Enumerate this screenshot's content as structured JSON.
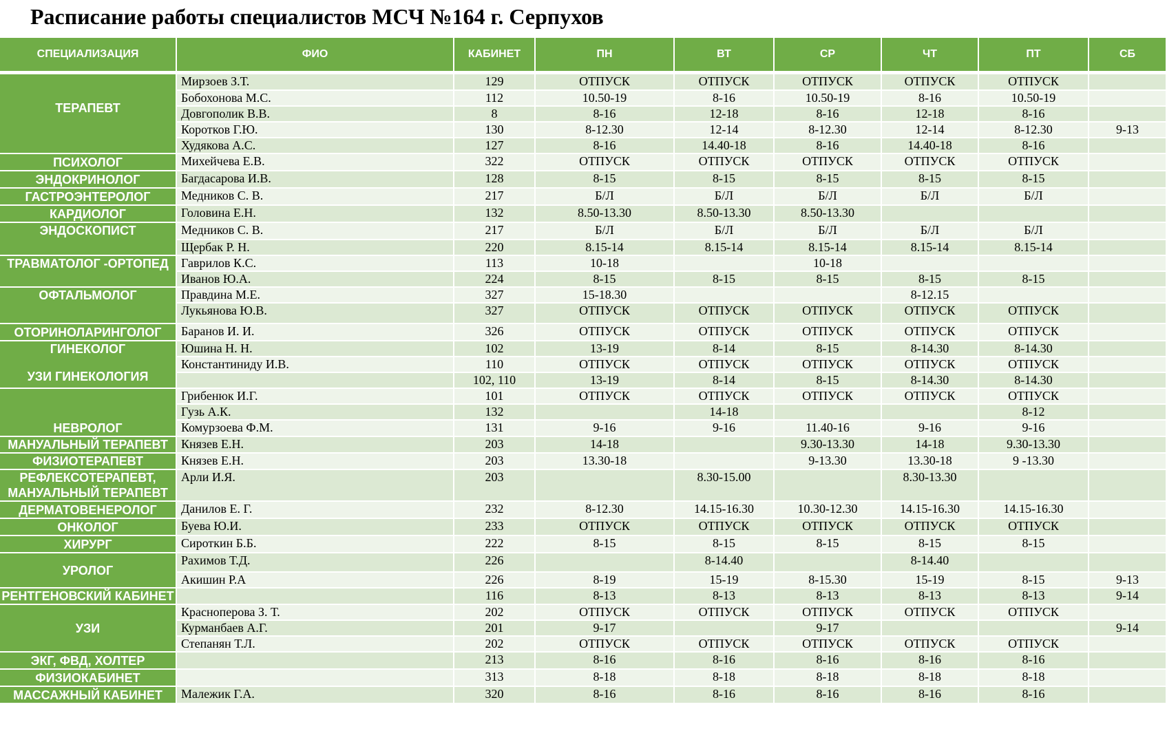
{
  "title": "Расписание работы специалистов МСЧ №164 г. Серпухов",
  "headers": [
    "СПЕЦИАЛИЗАЦИЯ",
    "ФИО",
    "КАБИНЕТ",
    "ПН",
    "ВТ",
    "СР",
    "ЧТ",
    "ПТ",
    "СБ"
  ],
  "specs": {
    "terapevt": "ТЕРАПЕВТ",
    "psiholog": "ПСИХОЛОГ",
    "endokrinolog": "ЭНДОКРИНОЛОГ",
    "gastro": "ГАСТРОЭНТЕРОЛОГ",
    "kardiolog": "КАРДИОЛОГ",
    "endoskopist": "ЭНДОСКОПИСТ",
    "travmatolog": "ТРАВМАТОЛОГ -ОРТОПЕД",
    "oftalmolog": "ОФТАЛЬМОЛОГ",
    "lor": "ОТОРИНОЛАРИНГОЛОГ",
    "ginekolog": "ГИНЕКОЛОГ",
    "uzi_gin": "УЗИ ГИНЕКОЛОГИЯ",
    "nevrolog": "НЕВРОЛОГ",
    "manual": "МАНУАЛЬНЫЙ ТЕРАПЕВТ",
    "fizio": "ФИЗИОТЕРАПЕВТ",
    "refleks_1": "РЕФЛЕКСОТЕРАПЕВТ,",
    "refleks_2": "МАНУАЛЬНЫЙ ТЕРАПЕВТ",
    "dermato": "ДЕРМАТОВЕНЕРОЛОГ",
    "onkolog": "ОНКОЛОГ",
    "hirurg": "ХИРУРГ",
    "urolog": "УРОЛОГ",
    "rentgen": "РЕНТГЕНОВСКИЙ КАБИНЕТ",
    "uzi": "УЗИ",
    "ekg": "ЭКГ, ФВД, ХОЛТЕР",
    "fiziokab": "ФИЗИОКАБИНЕТ",
    "massazh": "МАССАЖНЫЙ КАБИНЕТ"
  },
  "rows": [
    {
      "fio": "Мирзоев  З.Т.",
      "cab": "129",
      "mon": "ОТПУСК",
      "tue": "ОТПУСК",
      "wed": "ОТПУСК",
      "thu": "ОТПУСК",
      "fri": "ОТПУСК",
      "sat": ""
    },
    {
      "fio": "Бобохонова М.С.",
      "cab": "112",
      "mon": "10.50-19",
      "tue": "8-16",
      "wed": "10.50-19",
      "thu": "8-16",
      "fri": "10.50-19",
      "sat": ""
    },
    {
      "fio": "Довгополик В.В.",
      "cab": "8",
      "mon": "8-16",
      "tue": "12-18",
      "wed": "8-16",
      "thu": "12-18",
      "fri": "8-16",
      "sat": ""
    },
    {
      "fio": "Коротков Г.Ю.",
      "cab": "130",
      "mon": "8-12.30",
      "tue": "12-14",
      "wed": "8-12.30",
      "thu": "12-14",
      "fri": "8-12.30",
      "sat": "9-13"
    },
    {
      "fio": "Худякова А.С.",
      "cab": "127",
      "mon": "8-16",
      "tue": "14.40-18",
      "wed": "8-16",
      "thu": "14.40-18",
      "fri": "8-16",
      "sat": ""
    },
    {
      "fio": "Михейчева Е.В.",
      "cab": "322",
      "mon": "ОТПУСК",
      "tue": "ОТПУСК",
      "wed": "ОТПУСК",
      "thu": "ОТПУСК",
      "fri": "ОТПУСК",
      "sat": ""
    },
    {
      "fio": "Багдасарова И.В.",
      "cab": "128",
      "mon": "8-15",
      "tue": "8-15",
      "wed": "8-15",
      "thu": "8-15",
      "fri": "8-15",
      "sat": ""
    },
    {
      "fio": "Медников С. В.",
      "cab": "217",
      "mon": "Б/Л",
      "tue": "Б/Л",
      "wed": "Б/Л",
      "thu": "Б/Л",
      "fri": "Б/Л",
      "sat": ""
    },
    {
      "fio": "Головина Е.Н.",
      "cab": "132",
      "mon": "8.50-13.30",
      "tue": "8.50-13.30",
      "wed": "8.50-13.30",
      "thu": "",
      "fri": "",
      "sat": ""
    },
    {
      "fio": "Медников С. В.",
      "cab": "217",
      "mon": "Б/Л",
      "tue": "Б/Л",
      "wed": "Б/Л",
      "thu": "Б/Л",
      "fri": "Б/Л",
      "sat": ""
    },
    {
      "fio": "Щербак Р. Н.",
      "cab": "220",
      "mon": "8.15-14",
      "tue": "8.15-14",
      "wed": "8.15-14",
      "thu": "8.15-14",
      "fri": "8.15-14",
      "sat": ""
    },
    {
      "fio": "Гаврилов К.С.",
      "cab": "113",
      "mon": "10-18",
      "tue": "",
      "wed": "10-18",
      "thu": "",
      "fri": "",
      "sat": ""
    },
    {
      "fio": "Иванов Ю.А.",
      "cab": "224",
      "mon": "8-15",
      "tue": "8-15",
      "wed": "8-15",
      "thu": "8-15",
      "fri": "8-15",
      "sat": ""
    },
    {
      "fio": "Правдина М.Е.",
      "cab": "327",
      "mon": "15-18.30",
      "tue": "",
      "wed": "",
      "thu": "8-12.15",
      "fri": "",
      "sat": ""
    },
    {
      "fio": "Лукьянова Ю.В.",
      "cab": "327",
      "mon": "ОТПУСК",
      "tue": "ОТПУСК",
      "wed": "ОТПУСК",
      "thu": "ОТПУСК",
      "fri": "ОТПУСК",
      "sat": ""
    },
    {
      "fio": "Баранов И. И.",
      "cab": "326",
      "mon": "ОТПУСК",
      "tue": "ОТПУСК",
      "wed": "ОТПУСК",
      "thu": "ОТПУСК",
      "fri": "ОТПУСК",
      "sat": ""
    },
    {
      "fio": "Юшина Н. Н.",
      "cab": "102",
      "mon": "13-19",
      "tue": "8-14",
      "wed": "8-15",
      "thu": "8-14.30",
      "fri": "8-14.30",
      "sat": ""
    },
    {
      "fio": "Константиниду И.В.",
      "cab": "110",
      "mon": "ОТПУСК",
      "tue": "ОТПУСК",
      "wed": "ОТПУСК",
      "thu": "ОТПУСК",
      "fri": "ОТПУСК",
      "sat": ""
    },
    {
      "fio": "",
      "cab": "102, 110",
      "mon": "13-19",
      "tue": "8-14",
      "wed": "8-15",
      "thu": "8-14.30",
      "fri": "8-14.30",
      "sat": ""
    },
    {
      "fio": "Грибенюк И.Г.",
      "cab": "101",
      "mon": "ОТПУСК",
      "tue": "ОТПУСК",
      "wed": "ОТПУСК",
      "thu": "ОТПУСК",
      "fri": "ОТПУСК",
      "sat": ""
    },
    {
      "fio": "Гузь А.К.",
      "cab": "132",
      "mon": "",
      "tue": "14-18",
      "wed": "",
      "thu": "",
      "fri": "8-12",
      "sat": ""
    },
    {
      "fio": "Комурзоева Ф.М.",
      "cab": "131",
      "mon": "9-16",
      "tue": "9-16",
      "wed": "11.40-16",
      "thu": "9-16",
      "fri": "9-16",
      "sat": ""
    },
    {
      "fio": "Князев Е.Н.",
      "cab": "203",
      "mon": "14-18",
      "tue": "",
      "wed": "9.30-13.30",
      "thu": "14-18",
      "fri": "9.30-13.30",
      "sat": ""
    },
    {
      "fio": "Князев Е.Н.",
      "cab": "203",
      "mon": "13.30-18",
      "tue": "",
      "wed": "9-13.30",
      "thu": "13.30-18",
      "fri": "9 -13.30",
      "sat": ""
    },
    {
      "fio": "Арли И.Я.",
      "cab": "203",
      "mon": "",
      "tue": "8.30-15.00",
      "wed": "",
      "thu": "8.30-13.30",
      "fri": "",
      "sat": ""
    },
    {
      "fio": "Данилов Е. Г.",
      "cab": "232",
      "mon": "8-12.30",
      "tue": "14.15-16.30",
      "wed": "10.30-12.30",
      "thu": "14.15-16.30",
      "fri": "14.15-16.30",
      "sat": ""
    },
    {
      "fio": "Буева Ю.И.",
      "cab": "233",
      "mon": "ОТПУСК",
      "tue": "ОТПУСК",
      "wed": "ОТПУСК",
      "thu": "ОТПУСК",
      "fri": "ОТПУСК",
      "sat": ""
    },
    {
      "fio": "Сироткин Б.Б.",
      "cab": "222",
      "mon": "8-15",
      "tue": "8-15",
      "wed": "8-15",
      "thu": "8-15",
      "fri": "8-15",
      "sat": ""
    },
    {
      "fio": "Рахимов Т.Д.",
      "cab": "226",
      "mon": "",
      "tue": "8-14.40",
      "wed": "",
      "thu": "8-14.40",
      "fri": "",
      "sat": ""
    },
    {
      "fio": "Акишин Р.А",
      "cab": "226",
      "mon": "8-19",
      "tue": "15-19",
      "wed": "8-15.30",
      "thu": "15-19",
      "fri": "8-15",
      "sat": "9-13"
    },
    {
      "fio": "",
      "cab": "116",
      "mon": "8-13",
      "tue": "8-13",
      "wed": "8-13",
      "thu": "8-13",
      "fri": "8-13",
      "sat": "9-14"
    },
    {
      "fio": "Красноперова З. Т.",
      "cab": "202",
      "mon": "ОТПУСК",
      "tue": "ОТПУСК",
      "wed": "ОТПУСК",
      "thu": "ОТПУСК",
      "fri": "ОТПУСК",
      "sat": ""
    },
    {
      "fio": "Курманбаев А.Г.",
      "cab": "201",
      "mon": "9-17",
      "tue": "",
      "wed": "9-17",
      "thu": "",
      "fri": "",
      "sat": "9-14"
    },
    {
      "fio": "Степанян Т.Л.",
      "cab": "202",
      "mon": "ОТПУСК",
      "tue": "ОТПУСК",
      "wed": "ОТПУСК",
      "thu": "ОТПУСК",
      "fri": "ОТПУСК",
      "sat": ""
    },
    {
      "fio": "",
      "cab": "213",
      "mon": "8-16",
      "tue": "8-16",
      "wed": "8-16",
      "thu": "8-16",
      "fri": "8-16",
      "sat": ""
    },
    {
      "fio": "",
      "cab": "313",
      "mon": "8-18",
      "tue": "8-18",
      "wed": "8-18",
      "thu": "8-18",
      "fri": "8-18",
      "sat": ""
    },
    {
      "fio": "Малежик Г.А.",
      "cab": "320",
      "mon": "8-16",
      "tue": "8-16",
      "wed": "8-16",
      "thu": "8-16",
      "fri": "8-16",
      "sat": ""
    }
  ]
}
